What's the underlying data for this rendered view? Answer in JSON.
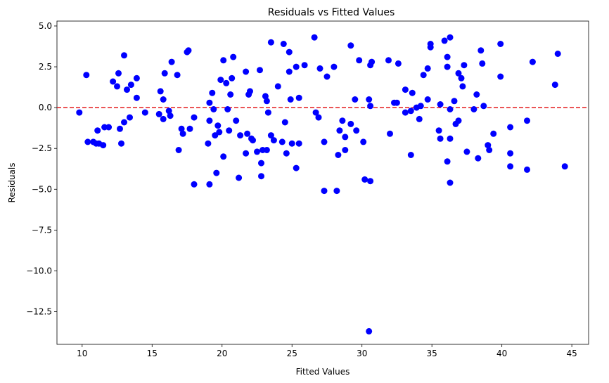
{
  "chart_data": {
    "type": "scatter",
    "title": "Residuals vs Fitted Values",
    "xlabel": "Fitted Values",
    "ylabel": "Residuals",
    "xlim": [
      8.2,
      46.2
    ],
    "ylim": [
      -14.5,
      5.3
    ],
    "xticks": [
      10,
      15,
      20,
      25,
      30,
      35,
      40,
      45
    ],
    "yticks": [
      5.0,
      2.5,
      0.0,
      -2.5,
      -5.0,
      -7.5,
      -10.0,
      -12.5
    ],
    "ytick_labels": [
      "5.0",
      "2.5",
      "0.0",
      "−2.5",
      "−5.0",
      "−7.5",
      "−10.0",
      "−12.5"
    ],
    "grid": false,
    "reference_line": {
      "y": 0,
      "style": "dashed",
      "color": "#e41a1c"
    },
    "marker_color": "#0000ff",
    "points": [
      [
        9.8,
        -0.3
      ],
      [
        10.3,
        2.0
      ],
      [
        10.4,
        -2.1
      ],
      [
        10.8,
        -2.1
      ],
      [
        11.0,
        -2.2
      ],
      [
        11.1,
        -1.4
      ],
      [
        11.2,
        -2.2
      ],
      [
        11.5,
        -2.3
      ],
      [
        11.6,
        -1.2
      ],
      [
        11.9,
        -1.2
      ],
      [
        12.2,
        1.6
      ],
      [
        12.5,
        1.3
      ],
      [
        12.6,
        2.1
      ],
      [
        12.7,
        -1.3
      ],
      [
        12.8,
        -2.2
      ],
      [
        13.0,
        3.2
      ],
      [
        13.0,
        -0.9
      ],
      [
        13.2,
        1.1
      ],
      [
        13.4,
        -0.6
      ],
      [
        13.5,
        1.4
      ],
      [
        13.9,
        1.8
      ],
      [
        13.9,
        0.6
      ],
      [
        14.5,
        -0.3
      ],
      [
        15.5,
        -0.4
      ],
      [
        15.6,
        1.0
      ],
      [
        15.8,
        0.5
      ],
      [
        15.8,
        -0.7
      ],
      [
        15.9,
        2.1
      ],
      [
        16.2,
        -0.2
      ],
      [
        16.3,
        -0.5
      ],
      [
        16.4,
        2.8
      ],
      [
        16.8,
        2.0
      ],
      [
        16.9,
        -2.6
      ],
      [
        17.1,
        -1.3
      ],
      [
        17.2,
        -1.6
      ],
      [
        17.5,
        3.4
      ],
      [
        17.6,
        3.5
      ],
      [
        17.7,
        -1.3
      ],
      [
        18.0,
        -0.6
      ],
      [
        18.0,
        -4.7
      ],
      [
        19.0,
        -2.2
      ],
      [
        19.1,
        0.3
      ],
      [
        19.1,
        -0.8
      ],
      [
        19.1,
        -4.7
      ],
      [
        19.3,
        0.9
      ],
      [
        19.4,
        -0.1
      ],
      [
        19.5,
        -1.7
      ],
      [
        19.6,
        -4.0
      ],
      [
        19.7,
        -1.1
      ],
      [
        19.8,
        -1.5
      ],
      [
        19.9,
        1.7
      ],
      [
        20.1,
        2.9
      ],
      [
        20.1,
        -3.0
      ],
      [
        20.3,
        1.5
      ],
      [
        20.4,
        -0.1
      ],
      [
        20.5,
        -1.4
      ],
      [
        20.6,
        0.8
      ],
      [
        20.7,
        1.8
      ],
      [
        20.8,
        3.1
      ],
      [
        21.0,
        -0.8
      ],
      [
        21.2,
        -4.3
      ],
      [
        21.3,
        -1.7
      ],
      [
        21.7,
        2.2
      ],
      [
        21.7,
        -2.8
      ],
      [
        21.8,
        -1.6
      ],
      [
        21.9,
        0.8
      ],
      [
        22.0,
        1.0
      ],
      [
        22.1,
        -1.9
      ],
      [
        22.2,
        -2.0
      ],
      [
        22.5,
        -2.7
      ],
      [
        22.7,
        2.3
      ],
      [
        22.8,
        -3.4
      ],
      [
        22.8,
        -4.2
      ],
      [
        22.9,
        -2.6
      ],
      [
        23.1,
        0.7
      ],
      [
        23.2,
        0.4
      ],
      [
        23.2,
        -2.6
      ],
      [
        23.3,
        -0.3
      ],
      [
        23.5,
        4.0
      ],
      [
        23.5,
        -1.7
      ],
      [
        23.7,
        -2.0
      ],
      [
        24.0,
        1.3
      ],
      [
        24.3,
        -2.1
      ],
      [
        24.4,
        3.9
      ],
      [
        24.5,
        -0.9
      ],
      [
        24.6,
        -2.8
      ],
      [
        24.8,
        2.2
      ],
      [
        24.8,
        3.4
      ],
      [
        24.9,
        0.5
      ],
      [
        25.0,
        -2.2
      ],
      [
        25.3,
        2.5
      ],
      [
        25.3,
        -3.7
      ],
      [
        25.5,
        0.6
      ],
      [
        25.5,
        -2.2
      ],
      [
        25.9,
        2.6
      ],
      [
        26.6,
        4.3
      ],
      [
        26.7,
        -0.3
      ],
      [
        26.9,
        -0.6
      ],
      [
        27.0,
        2.4
      ],
      [
        27.3,
        -5.1
      ],
      [
        27.3,
        -2.1
      ],
      [
        27.5,
        1.9
      ],
      [
        28.0,
        2.5
      ],
      [
        28.2,
        -5.1
      ],
      [
        28.3,
        -2.9
      ],
      [
        28.4,
        -1.4
      ],
      [
        28.6,
        -0.8
      ],
      [
        28.8,
        -2.6
      ],
      [
        28.8,
        -1.8
      ],
      [
        29.2,
        3.8
      ],
      [
        29.2,
        -1.0
      ],
      [
        29.5,
        0.5
      ],
      [
        29.6,
        -1.4
      ],
      [
        29.8,
        2.9
      ],
      [
        30.1,
        -2.1
      ],
      [
        30.2,
        -4.4
      ],
      [
        30.5,
        -13.7
      ],
      [
        30.6,
        -4.5
      ],
      [
        30.5,
        0.5
      ],
      [
        30.6,
        2.6
      ],
      [
        30.6,
        0.1
      ],
      [
        30.7,
        2.8
      ],
      [
        31.9,
        2.9
      ],
      [
        32.0,
        -1.6
      ],
      [
        32.3,
        0.3
      ],
      [
        32.5,
        0.3
      ],
      [
        32.6,
        2.7
      ],
      [
        33.1,
        1.1
      ],
      [
        33.1,
        -0.3
      ],
      [
        33.5,
        -2.9
      ],
      [
        33.5,
        -0.2
      ],
      [
        33.6,
        0.9
      ],
      [
        33.9,
        0.0
      ],
      [
        34.1,
        -0.7
      ],
      [
        34.2,
        0.1
      ],
      [
        34.4,
        2.0
      ],
      [
        34.7,
        0.5
      ],
      [
        34.7,
        2.4
      ],
      [
        34.9,
        3.9
      ],
      [
        34.9,
        3.7
      ],
      [
        35.5,
        -1.4
      ],
      [
        35.6,
        0.2
      ],
      [
        35.6,
        -1.9
      ],
      [
        35.9,
        4.1
      ],
      [
        36.1,
        2.5
      ],
      [
        36.1,
        3.1
      ],
      [
        36.1,
        -3.3
      ],
      [
        36.3,
        4.3
      ],
      [
        36.3,
        -0.1
      ],
      [
        36.3,
        -1.9
      ],
      [
        36.3,
        -4.6
      ],
      [
        36.6,
        0.4
      ],
      [
        36.7,
        -1.0
      ],
      [
        36.9,
        2.1
      ],
      [
        36.9,
        -0.8
      ],
      [
        37.1,
        1.8
      ],
      [
        37.2,
        1.3
      ],
      [
        37.3,
        2.6
      ],
      [
        37.5,
        -2.7
      ],
      [
        38.0,
        -0.1
      ],
      [
        38.2,
        0.8
      ],
      [
        38.3,
        -3.1
      ],
      [
        38.5,
        3.5
      ],
      [
        38.6,
        2.7
      ],
      [
        38.7,
        0.1
      ],
      [
        39.0,
        -2.3
      ],
      [
        39.1,
        -2.6
      ],
      [
        39.4,
        -1.6
      ],
      [
        39.9,
        3.9
      ],
      [
        39.9,
        1.9
      ],
      [
        40.6,
        -1.2
      ],
      [
        40.6,
        -2.8
      ],
      [
        40.6,
        -3.6
      ],
      [
        41.8,
        -3.8
      ],
      [
        41.8,
        -0.8
      ],
      [
        42.2,
        2.8
      ],
      [
        43.8,
        1.4
      ],
      [
        44.0,
        3.3
      ],
      [
        44.5,
        -3.6
      ]
    ]
  }
}
